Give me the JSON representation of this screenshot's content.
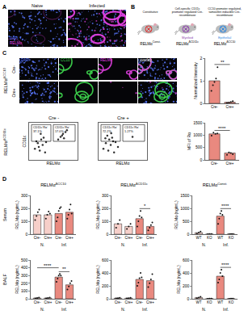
{
  "panels": {
    "A": {
      "label": "A",
      "titles": [
        "Naive",
        "Infected"
      ],
      "channels": [
        {
          "text": "DAPI",
          "color": "#5a78ff"
        },
        {
          "text": "RELMα",
          "color": "#e040e0"
        }
      ]
    },
    "B": {
      "label": "B",
      "mice": [
        {
          "top": "Constitutive",
          "name": "RELMα",
          "sup": "Const."
        },
        {
          "top": "Cell-specific CD11c promoter regulated Cre-recombinase",
          "tag": "Myeloid",
          "name": "RELMα",
          "sup": "ΔCD11c"
        },
        {
          "top": "CC10 promoter regulated, tamoxifen inducible Cre-recombinase",
          "tag": "Epithelial",
          "name": "RELMα",
          "sup": "ΔCC10"
        }
      ]
    },
    "C": {
      "label": "C",
      "rows": [
        {
          "name": "RELMα",
          "sup": "ΔCC10"
        },
        {
          "name": "RELMα",
          "sup": "ΔCD11c"
        }
      ],
      "image_rows": [
        "Cre-",
        "Cre+"
      ],
      "image_columns": [
        {
          "text": "DAPI",
          "color": "#5a78ff"
        },
        {
          "text": "CC10",
          "color": "#3fd94f"
        },
        {
          "text": "RELMα",
          "color": "#e040e0"
        },
        {
          "text": "overlay",
          "color": "#ffffff"
        }
      ]
    },
    "D": {
      "label": "D",
      "columns": [
        {
          "name": "RELMα",
          "sup": "ΔCC10"
        },
        {
          "name": "RELMα",
          "sup": "ΔCD11c"
        },
        {
          "name": "RELMα",
          "sup": "Const."
        }
      ],
      "rows": [
        "Serum",
        "BALF"
      ]
    }
  },
  "chart_data": [
    {
      "type": "bar",
      "categories": [
        "Cre-",
        "Cre+"
      ],
      "values": [
        1.0,
        0.05
      ],
      "colors": [
        "#e9897f",
        "#e9897f"
      ],
      "points": [
        [
          0.55,
          0.8,
          0.95,
          1.1,
          1.6
        ],
        [
          0.02,
          0.04,
          0.06,
          0.1
        ]
      ],
      "ylabel": "Normalized Intensity",
      "ylim": [
        0,
        2
      ],
      "yticks": [
        0,
        1,
        2
      ],
      "significance": [
        {
          "text": "**",
          "between": [
            0,
            1
          ]
        }
      ]
    },
    {
      "type": "scatter",
      "title": "Cre -",
      "xlabel": "RELMα",
      "ylabel": "CD11c",
      "xlim": [
        0,
        100
      ],
      "ylim": [
        0,
        100
      ],
      "tick_labels": false,
      "color": "#333333",
      "x": [
        12,
        18,
        22,
        25,
        28,
        30,
        15,
        20,
        35,
        65,
        70,
        72,
        75,
        68,
        78,
        60,
        24,
        33
      ],
      "y": [
        30,
        45,
        25,
        55,
        40,
        60,
        50,
        35,
        48,
        62,
        70,
        58,
        75,
        66,
        80,
        55,
        70,
        20
      ],
      "gates": [
        {
          "label": "CD11c⁺Rα⁺",
          "percent": "17.0%",
          "x": [
            50,
            95
          ],
          "y": [
            50,
            95
          ]
        },
        {
          "label": "CD11c⁺Rα⁻",
          "percent": "37.1%",
          "x": [
            5,
            45
          ],
          "y": [
            50,
            95
          ]
        }
      ]
    },
    {
      "type": "scatter",
      "title": "Cre +",
      "xlabel": "RELMα",
      "xlim": [
        0,
        100
      ],
      "ylim": [
        0,
        100
      ],
      "tick_labels": false,
      "color": "#333333",
      "x": [
        10,
        15,
        20,
        22,
        25,
        28,
        30,
        18,
        35,
        26,
        14,
        40,
        70,
        32
      ],
      "y": [
        30,
        45,
        25,
        55,
        40,
        60,
        50,
        65,
        48,
        72,
        58,
        35,
        62,
        20
      ],
      "gates": [
        {
          "label": "CD11c⁺Rα⁺",
          "percent": "1.27%",
          "x": [
            50,
            95
          ],
          "y": [
            50,
            95
          ]
        },
        {
          "label": "CD11c⁺Rα⁻",
          "percent": "72.2%",
          "x": [
            5,
            45
          ],
          "y": [
            50,
            95
          ]
        }
      ]
    },
    {
      "type": "bar",
      "categories": [
        "Cre-",
        "Cre+"
      ],
      "values": [
        1050,
        280
      ],
      "colors": [
        "#e9897f",
        "#e9897f"
      ],
      "points": [
        [
          980,
          1100,
          1050,
          1070
        ],
        [
          200,
          300,
          280,
          230
        ]
      ],
      "ylabel": "MFI of Rα",
      "ylim": [
        0,
        1500
      ],
      "yticks": [
        0,
        500,
        1000,
        1500
      ],
      "significance": [
        {
          "text": "****",
          "between": [
            0,
            1
          ]
        }
      ]
    },
    {
      "type": "bar",
      "categories": [
        "Cre-",
        "Cre+",
        "Cre-",
        "Cre+"
      ],
      "group_labels": [
        "N.",
        "Inf."
      ],
      "values": [
        150,
        150,
        160,
        170
      ],
      "colors": [
        "#f6cfc9",
        "#f6cfc9",
        "#e9897f",
        "#e9897f"
      ],
      "points": [
        [
          110,
          140,
          170,
          190
        ],
        [
          120,
          150,
          175,
          160
        ],
        [
          100,
          130,
          180,
          200,
          210
        ],
        [
          120,
          150,
          190,
          230,
          160
        ]
      ],
      "ylabel": "RELMα (ng/mL)",
      "ylim": [
        0,
        300
      ],
      "yticks": [
        0,
        100,
        200,
        300
      ],
      "significance": []
    },
    {
      "type": "bar",
      "categories": [
        "Cre-",
        "Cre+",
        "Cre-",
        "Cre+"
      ],
      "group_labels": [
        "N.",
        "Inf."
      ],
      "values": [
        80,
        60,
        120,
        60
      ],
      "colors": [
        "#f6cfc9",
        "#f6cfc9",
        "#e9897f",
        "#e9897f"
      ],
      "points": [
        [
          50,
          80,
          110
        ],
        [
          40,
          60,
          80
        ],
        [
          60,
          100,
          140,
          180,
          130
        ],
        [
          30,
          50,
          70,
          90
        ]
      ],
      "ylabel": "RELMα (ng/mL)",
      "ylim": [
        0,
        300
      ],
      "yticks": [
        0,
        100,
        200,
        300
      ],
      "significance": [
        {
          "text": "*",
          "between": [
            2,
            3
          ]
        }
      ]
    },
    {
      "type": "bar",
      "categories": [
        "WT",
        "KO",
        "WT",
        "KO"
      ],
      "group_labels": [
        "N.",
        "Inf."
      ],
      "values": [
        60,
        5,
        700,
        5
      ],
      "colors": [
        "#f6cfc9",
        "#f6cfc9",
        "#e9897f",
        "#e9897f"
      ],
      "points": [
        [
          20,
          60,
          100
        ],
        [
          0,
          5,
          10
        ],
        [
          400,
          600,
          800,
          900,
          750
        ],
        [
          0,
          5,
          8
        ]
      ],
      "ylabel": "RELMα (ng/mL)",
      "ylim": [
        0,
        1500
      ],
      "yticks": [
        0,
        500,
        1000,
        1500
      ],
      "significance": [
        {
          "text": "****",
          "between": [
            2,
            3
          ]
        }
      ]
    },
    {
      "type": "bar",
      "categories": [
        "Cre-",
        "Cre+",
        "Cre-",
        "Cre+"
      ],
      "group_labels": [
        "N.",
        "Inf."
      ],
      "values": [
        10,
        10,
        280,
        180
      ],
      "colors": [
        "#f6cfc9",
        "#f6cfc9",
        "#e9897f",
        "#e9897f"
      ],
      "points": [
        [
          5,
          10,
          15
        ],
        [
          5,
          10,
          15
        ],
        [
          220,
          260,
          300,
          320,
          300
        ],
        [
          120,
          160,
          200,
          230
        ]
      ],
      "ylabel": "RELMα (ng/mL)",
      "ylim": [
        0,
        500
      ],
      "yticks": [
        0,
        100,
        200,
        300,
        400,
        500
      ],
      "significance": [
        {
          "text": "**",
          "between": [
            2,
            3
          ]
        },
        {
          "text": "****",
          "between": [
            0,
            2
          ]
        }
      ]
    },
    {
      "type": "bar",
      "categories": [
        "Cre-",
        "Cre+",
        "Cre-",
        "Cre+"
      ],
      "group_labels": [
        "N.",
        "Inf."
      ],
      "values": [
        10,
        10,
        300,
        280
      ],
      "colors": [
        "#f6cfc9",
        "#f6cfc9",
        "#e9897f",
        "#e9897f"
      ],
      "points": [
        [
          5,
          10,
          15
        ],
        [
          5,
          10,
          15
        ],
        [
          200,
          250,
          320,
          400,
          330
        ],
        [
          180,
          240,
          300,
          380
        ]
      ],
      "ylabel": "RELMα (ng/mL)",
      "ylim": [
        0,
        600
      ],
      "yticks": [
        0,
        200,
        400,
        600
      ],
      "significance": []
    },
    {
      "type": "bar",
      "categories": [
        "WT",
        "KO",
        "WT",
        "KO"
      ],
      "group_labels": [
        "N.",
        "Inf."
      ],
      "values": [
        20,
        2,
        350,
        2
      ],
      "colors": [
        "#f6cfc9",
        "#f6cfc9",
        "#e9897f",
        "#e9897f"
      ],
      "points": [
        [
          10,
          20,
          30
        ],
        [
          0,
          2,
          4
        ],
        [
          250,
          300,
          400,
          450,
          350
        ],
        [
          0,
          2,
          4
        ]
      ],
      "ylabel": "RELMα (ng/mL)",
      "ylim": [
        0,
        600
      ],
      "yticks": [
        0,
        200,
        400,
        600
      ],
      "significance": [
        {
          "text": "****",
          "between": [
            2,
            3
          ]
        }
      ]
    }
  ]
}
